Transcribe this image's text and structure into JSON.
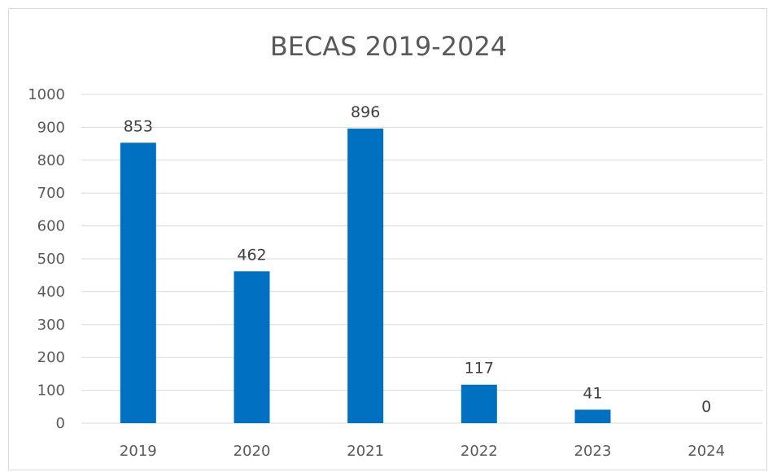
{
  "chart_data": {
    "type": "bar",
    "title": "BECAS 2019-2024",
    "xlabel": "",
    "ylabel": "",
    "categories": [
      "2019",
      "2020",
      "2021",
      "2022",
      "2023",
      "2024"
    ],
    "values": [
      853,
      462,
      896,
      117,
      41,
      0
    ],
    "data_labels": [
      "853",
      "462",
      "896",
      "117",
      "41",
      "0"
    ],
    "ylim": [
      0,
      1000
    ],
    "yticks": [
      "0",
      "100",
      "200",
      "300",
      "400",
      "500",
      "600",
      "700",
      "800",
      "900",
      "1000"
    ],
    "grid": true,
    "legend": "none",
    "bar_color": "#0070C0"
  }
}
